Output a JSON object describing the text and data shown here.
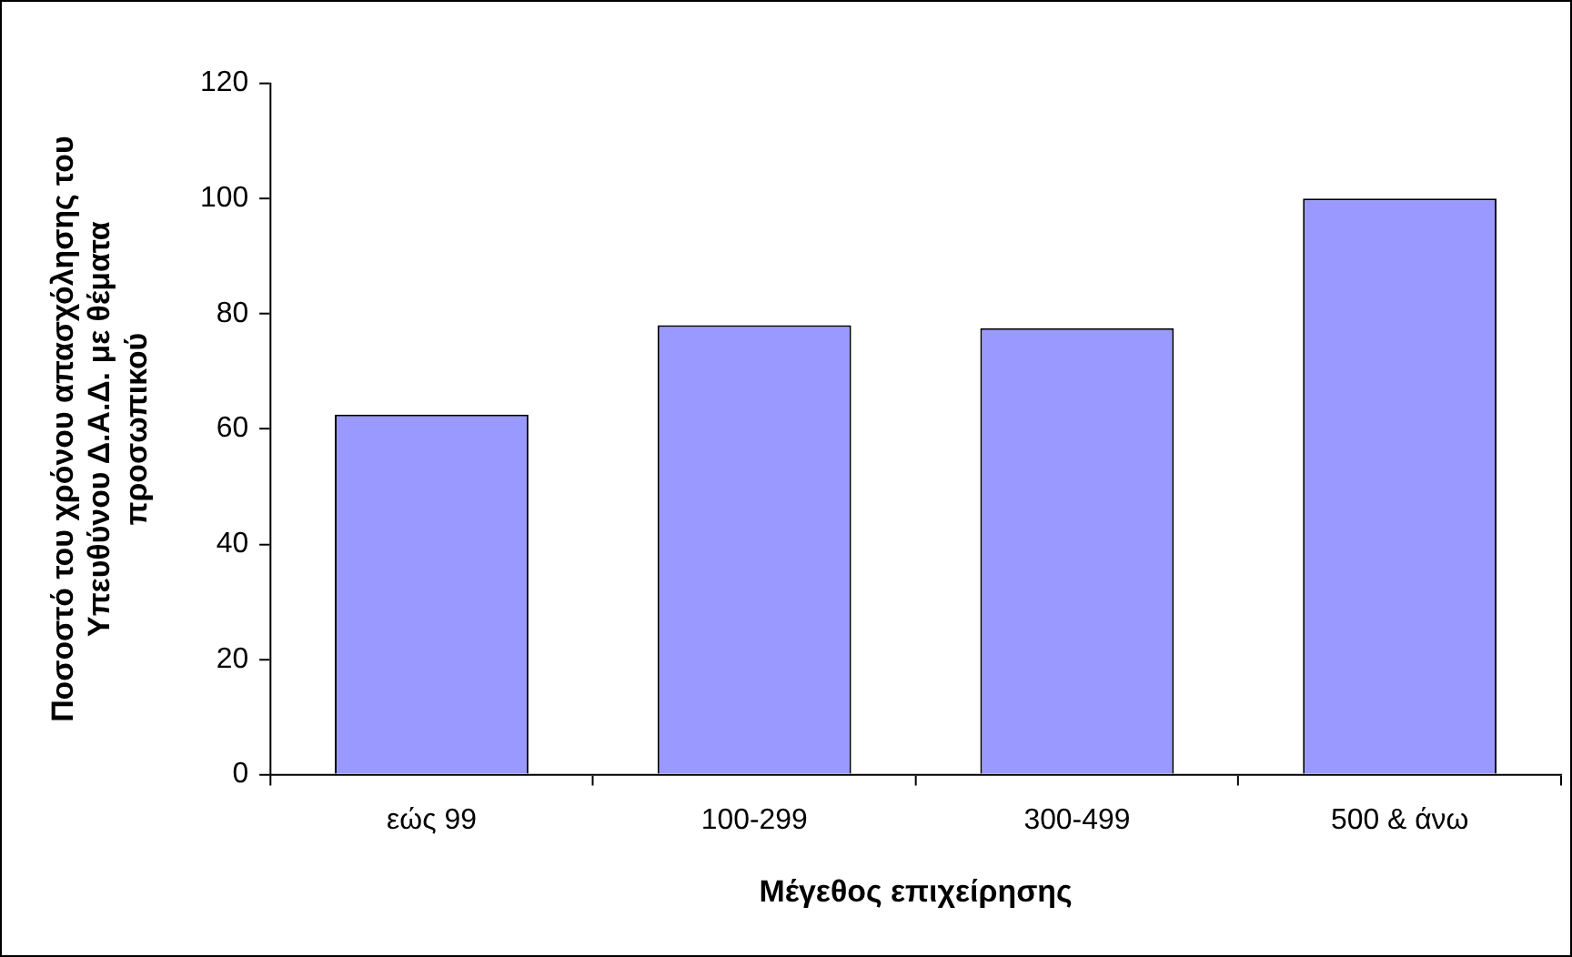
{
  "chart_data": {
    "type": "bar",
    "xlabel": "Μέγεθος επιχείρησης",
    "ylabel": "Ποσοστό του χρόνου απασχόλησης του Υπευθύνου Δ.Α.Δ. με θέματα προσωπικού",
    "categories": [
      "εώς 99",
      "100-299",
      "300-499",
      "500 & άνω"
    ],
    "values": [
      62.5,
      78,
      77.5,
      100
    ],
    "color": "#9999ff",
    "ylim": [
      0,
      120
    ],
    "yticks": [
      0,
      20,
      40,
      60,
      80,
      100,
      120
    ],
    "grid": false,
    "legend": false
  }
}
